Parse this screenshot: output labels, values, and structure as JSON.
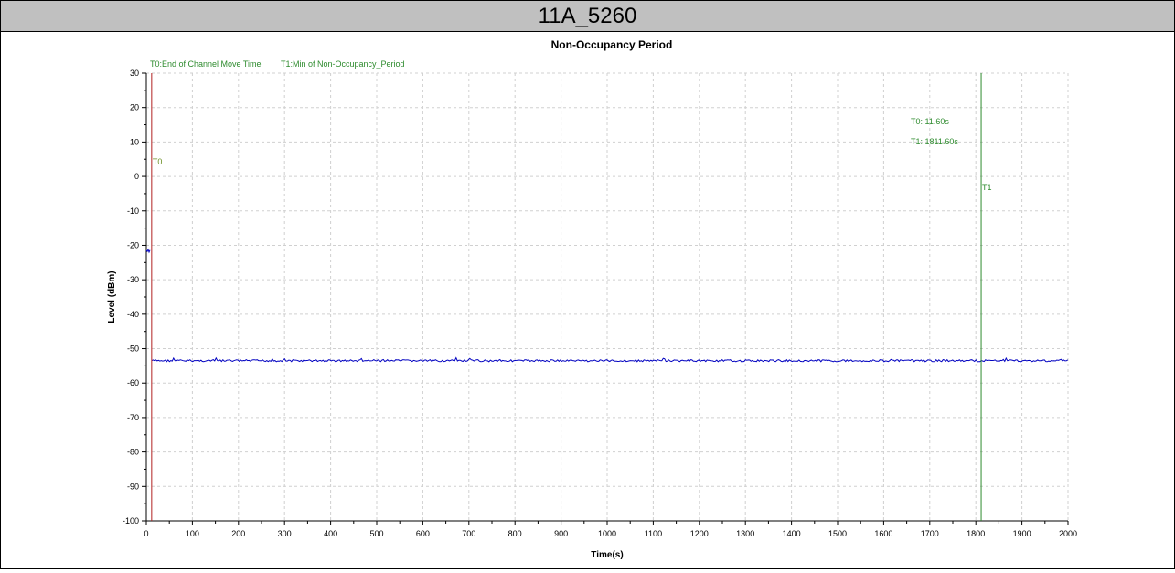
{
  "window": {
    "title": "11A_5260"
  },
  "chart_data": {
    "type": "line",
    "title": "Non-Occupancy Period",
    "xlabel": "Time(s)",
    "ylabel": "Level (dBm)",
    "xlim": [
      0,
      2000
    ],
    "ylim": [
      -100,
      30
    ],
    "xticks": [
      0,
      100,
      200,
      300,
      400,
      500,
      600,
      700,
      800,
      900,
      1000,
      1100,
      1200,
      1300,
      1400,
      1500,
      1600,
      1700,
      1800,
      1900,
      2000
    ],
    "yticks": [
      30,
      20,
      10,
      0,
      -10,
      -20,
      -30,
      -40,
      -50,
      -60,
      -70,
      -80,
      -90,
      -100
    ],
    "grid": true,
    "legend": [
      {
        "label": "T0:End of Channel Move Time",
        "color": "#2e8b2e"
      },
      {
        "label": "T1:Min of Non-Occupancy_Period",
        "color": "#2e8b2e"
      }
    ],
    "series": [
      {
        "color": "#0000c0",
        "segments": [
          {
            "x": [
              0,
              2,
              4,
              6,
              8
            ],
            "y": [
              -21.5,
              -21.8,
              -21.2,
              -22.0,
              -21.4
            ]
          },
          {
            "x": [
              11.6,
              2000
            ],
            "y": [
              -53.5,
              -53.5
            ]
          }
        ]
      }
    ],
    "markers": [
      {
        "name": "T0",
        "x": 11.6,
        "color": "#b22222",
        "label_color": "#6b8e23"
      },
      {
        "name": "T1",
        "x": 1811.6,
        "color": "#2e8b2e",
        "label_color": "#2e8b2e"
      }
    ],
    "annotations": [
      {
        "text": "T0: 11.60s"
      },
      {
        "text": "T1: 1811.60s"
      }
    ]
  }
}
